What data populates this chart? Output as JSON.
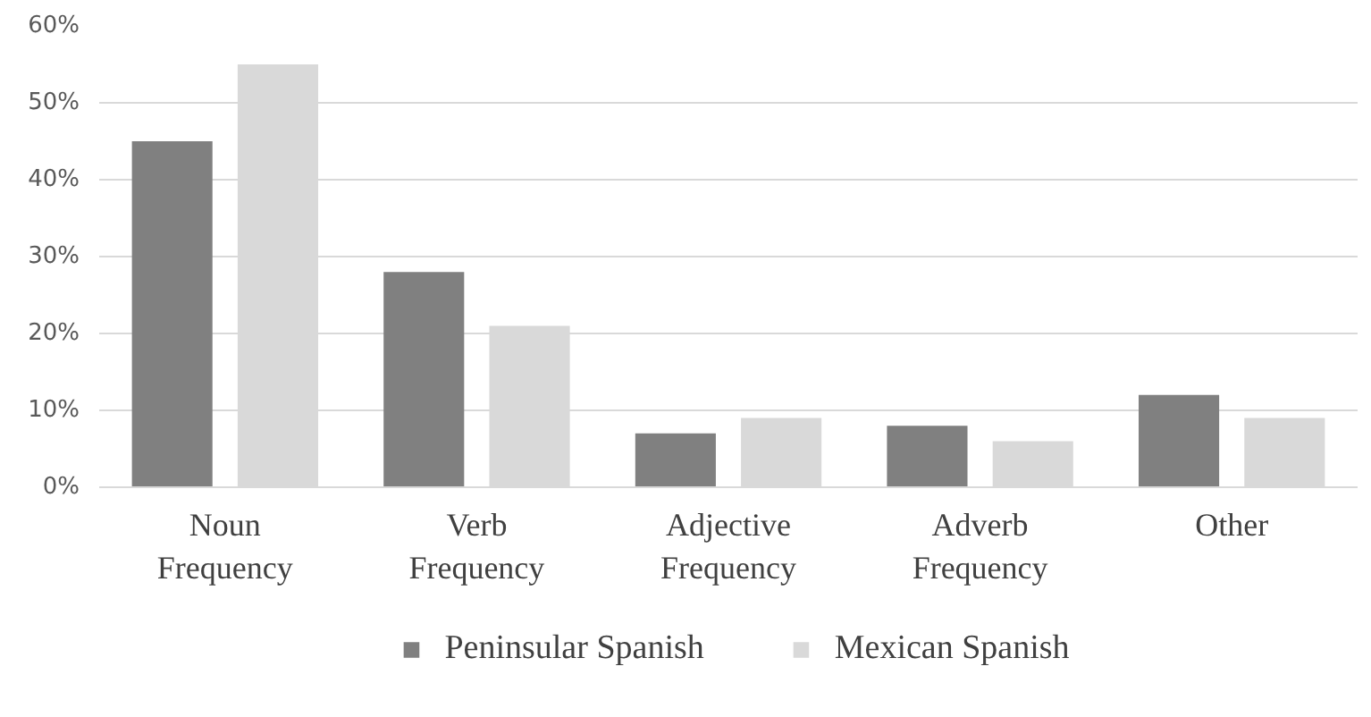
{
  "chart_data": {
    "type": "bar",
    "categories": [
      "Noun Frequency",
      "Verb Frequency",
      "Adjective Frequency",
      "Adverb Frequency",
      "Other"
    ],
    "series": [
      {
        "name": "Peninsular Spanish",
        "color": "#808080",
        "values": [
          45,
          28,
          7,
          8,
          12
        ]
      },
      {
        "name": "Mexican Spanish",
        "color": "#d9d9d9",
        "values": [
          55,
          21,
          9,
          6,
          9
        ]
      }
    ],
    "ylim": [
      0,
      60
    ],
    "yticks": [
      {
        "value": 0,
        "label": "0%"
      },
      {
        "value": 10,
        "label": "10%"
      },
      {
        "value": 20,
        "label": "20%"
      },
      {
        "value": 30,
        "label": "30%"
      },
      {
        "value": 40,
        "label": "40%"
      },
      {
        "value": 50,
        "label": "50%"
      },
      {
        "value": 60,
        "label": "60%"
      }
    ],
    "grid": "y",
    "legend": "bottom"
  }
}
